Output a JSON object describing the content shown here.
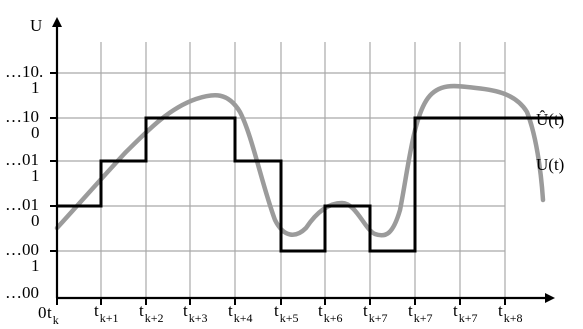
{
  "y_axis_label": "U",
  "y_levels": [
    {
      "top": "…00",
      "bottom": ""
    },
    {
      "top": "…00",
      "bottom": "1"
    },
    {
      "top": "…01",
      "bottom": "0"
    },
    {
      "top": "…01",
      "bottom": "1"
    },
    {
      "top": "…10",
      "bottom": "0"
    },
    {
      "top": "…10.",
      "bottom": "1"
    }
  ],
  "origin_label": "0",
  "t_labels": [
    {
      "base": "t",
      "sub": "k"
    },
    {
      "base": "t",
      "sub": "k+1"
    },
    {
      "base": "t",
      "sub": "k+2"
    },
    {
      "base": "t",
      "sub": "k+3"
    },
    {
      "base": "t",
      "sub": "k+4"
    },
    {
      "base": "t",
      "sub": "k+5"
    },
    {
      "base": "t",
      "sub": "k+6"
    },
    {
      "base": "t",
      "sub": "k+7"
    },
    {
      "base": "t",
      "sub": "k+7"
    },
    {
      "base": "t",
      "sub": "k+7"
    },
    {
      "base": "t",
      "sub": "k+8"
    }
  ],
  "legend": {
    "quantized": "Û(t)",
    "analog": "U(t)"
  },
  "colors": {
    "curve": "#9b9b9b",
    "step": "#000000",
    "grid": "#a9a9a9"
  }
}
